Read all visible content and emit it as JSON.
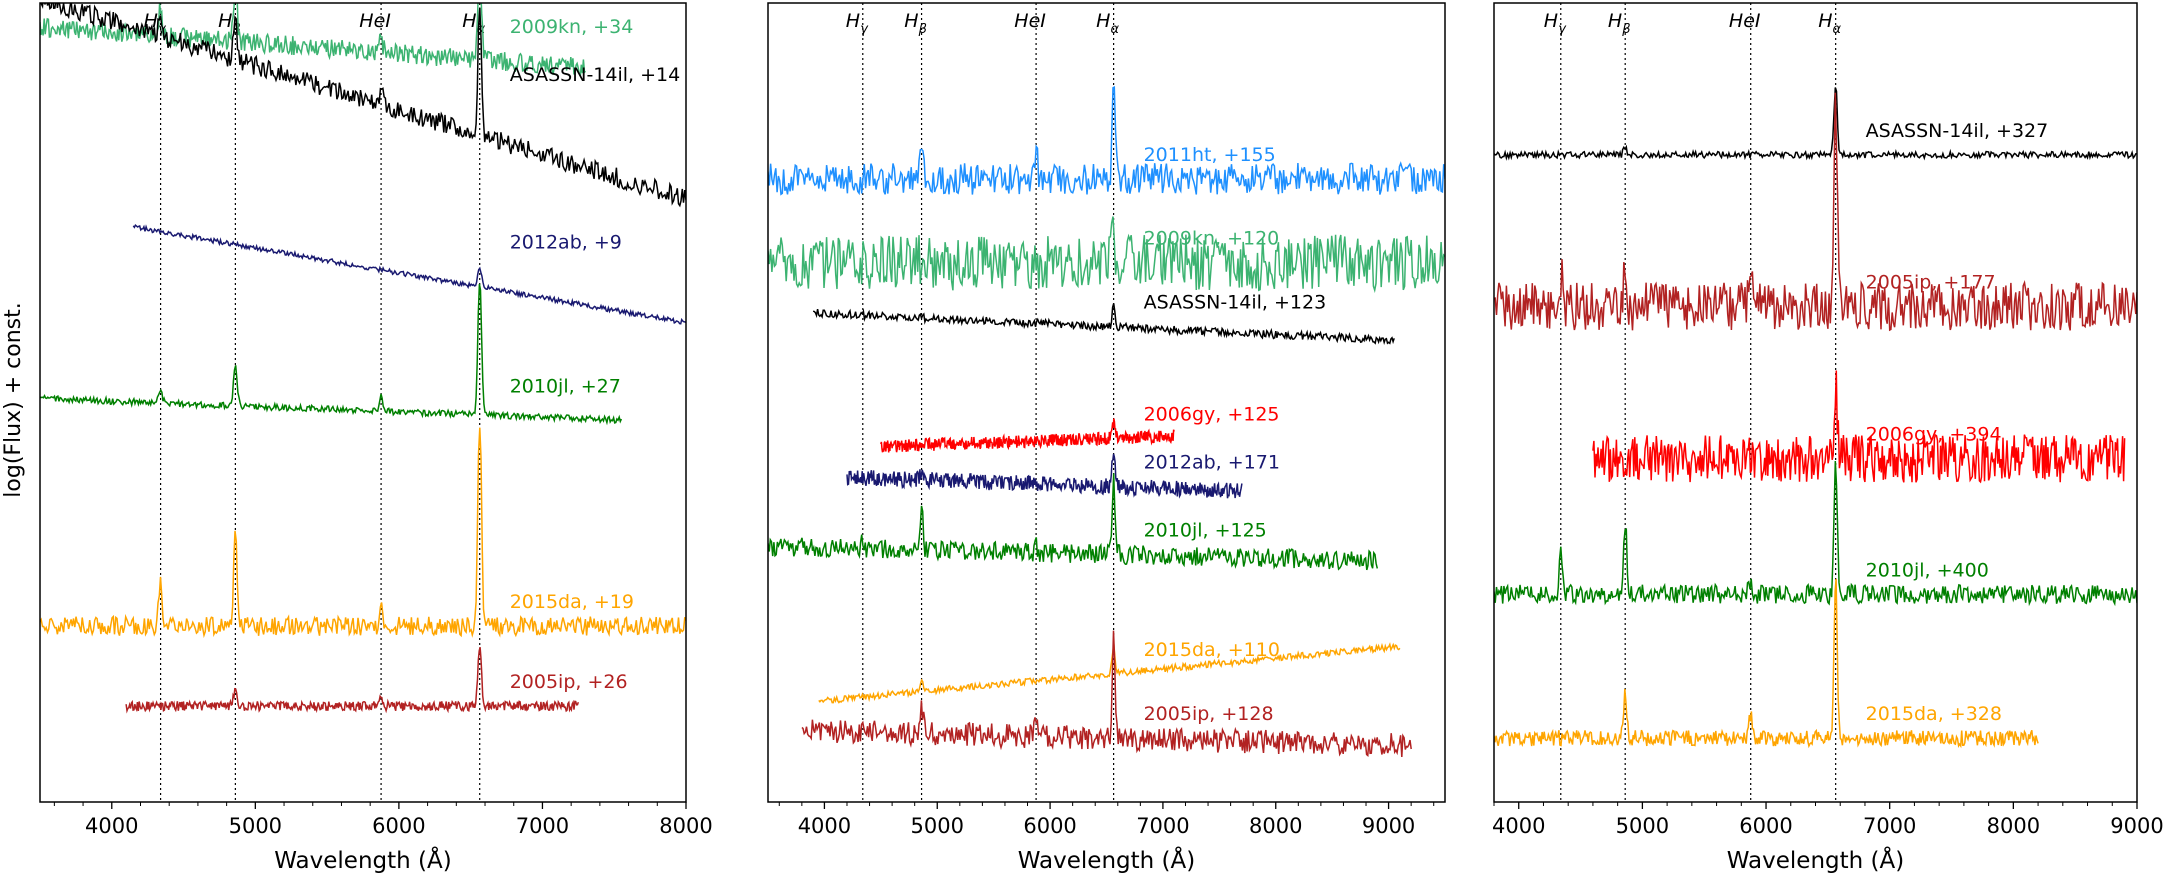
{
  "figure": {
    "ylabel": "log(Flux) + const."
  },
  "chart_data": [
    {
      "type": "line",
      "xlabel": "Wavelength (Å)",
      "ylabel": "log(Flux) + const.",
      "xlim": [
        3500,
        8000
      ],
      "xticks": [
        4000,
        5000,
        6000,
        7000,
        8000
      ],
      "lines": [
        {
          "label": "Hγ",
          "x": 4340
        },
        {
          "label": "Hβ",
          "x": 4861
        },
        {
          "label": "HeI",
          "x": 5876
        },
        {
          "label": "Hα",
          "x": 6563
        }
      ],
      "series": [
        {
          "name": "2009kn, +34",
          "color": "#3cb371",
          "range": [
            3500,
            7300
          ],
          "y0": 0.06,
          "slope": 0.06,
          "noise": 0.012,
          "lines": [
            [
              4340,
              0.035
            ],
            [
              4861,
              0.07
            ],
            [
              5876,
              0.015
            ],
            [
              6563,
              0.11
            ]
          ]
        },
        {
          "name": "ASASSN-14il, +14",
          "color": "#000000",
          "range": [
            3500,
            8000
          ],
          "y0": 0.12,
          "slope": 0.25,
          "noise": 0.012,
          "lines": [
            [
              4340,
              0.025
            ],
            [
              4861,
              0.05
            ],
            [
              5876,
              0.02
            ],
            [
              6563,
              0.16
            ]
          ]
        },
        {
          "name": "2012ab, +9",
          "color": "#191970",
          "range": [
            4150,
            8000
          ],
          "y0": 0.33,
          "slope": 0.14,
          "noise": 0.003,
          "lines": [
            [
              6563,
              0.025
            ]
          ]
        },
        {
          "name": "2010jl, +27",
          "color": "#008000",
          "range": [
            3500,
            7550
          ],
          "y0": 0.51,
          "slope": 0.03,
          "noise": 0.004,
          "lines": [
            [
              4340,
              0.015
            ],
            [
              4861,
              0.05
            ],
            [
              5876,
              0.018
            ],
            [
              6563,
              0.17
            ]
          ]
        },
        {
          "name": "2015da, +19",
          "color": "#ffa500",
          "range": [
            3500,
            8000
          ],
          "y0": 0.78,
          "slope": 0.0,
          "noise": 0.012,
          "lines": [
            [
              4340,
              0.05
            ],
            [
              4861,
              0.11
            ],
            [
              5876,
              0.03
            ],
            [
              6563,
              0.26
            ]
          ]
        },
        {
          "name": "2005ip, +26",
          "color": "#b22222",
          "range": [
            4100,
            7250
          ],
          "y0": 0.88,
          "slope": 0.0,
          "noise": 0.006,
          "lines": [
            [
              4861,
              0.02
            ],
            [
              5876,
              0.012
            ],
            [
              6563,
              0.07
            ]
          ]
        }
      ]
    },
    {
      "type": "line",
      "xlabel": "Wavelength (Å)",
      "xlim": [
        3500,
        9500
      ],
      "xticks": [
        4000,
        5000,
        6000,
        7000,
        8000,
        9000
      ],
      "lines": [
        {
          "label": "Hγ",
          "x": 4340
        },
        {
          "label": "Hβ",
          "x": 4861
        },
        {
          "label": "HeI",
          "x": 5876
        },
        {
          "label": "Hα",
          "x": 6563
        }
      ],
      "series": [
        {
          "name": "2011ht, +155",
          "color": "#1e90ff",
          "range": [
            3500,
            9500
          ],
          "y0": 0.22,
          "slope": 0.0,
          "noise": 0.02,
          "lines": [
            [
              4861,
              0.05
            ],
            [
              5876,
              0.03
            ],
            [
              6563,
              0.13
            ]
          ]
        },
        {
          "name": "2009kn, +120",
          "color": "#3cb371",
          "range": [
            3500,
            9500
          ],
          "y0": 0.325,
          "slope": 0.0,
          "noise": 0.035,
          "lines": [
            [
              6563,
              0.05
            ]
          ]
        },
        {
          "name": "ASASSN-14il, +123",
          "color": "#000000",
          "range": [
            3900,
            9050
          ],
          "y0": 0.405,
          "slope": 0.04,
          "noise": 0.005,
          "lines": [
            [
              6563,
              0.025
            ]
          ]
        },
        {
          "name": "2006gy, +125",
          "color": "#ff0000",
          "range": [
            4500,
            7100
          ],
          "y0": 0.545,
          "slope": -0.03,
          "noise": 0.008,
          "lines": [
            [
              6563,
              0.02
            ]
          ]
        },
        {
          "name": "2012ab, +171",
          "color": "#191970",
          "range": [
            4200,
            7700
          ],
          "y0": 0.605,
          "slope": 0.03,
          "noise": 0.01,
          "lines": [
            [
              4861,
              0.01
            ],
            [
              6563,
              0.05
            ]
          ]
        },
        {
          "name": "2010jl, +125",
          "color": "#008000",
          "range": [
            3500,
            8900
          ],
          "y0": 0.69,
          "slope": 0.02,
          "noise": 0.012,
          "lines": [
            [
              4340,
              0.015
            ],
            [
              4861,
              0.05
            ],
            [
              5876,
              0.01
            ],
            [
              6563,
              0.09
            ]
          ]
        },
        {
          "name": "2015da, +110",
          "color": "#ffa500",
          "range": [
            3950,
            9100
          ],
          "y0": 0.84,
          "slope": -0.08,
          "noise": 0.004,
          "lines": [
            [
              4861,
              0.015
            ],
            [
              6563,
              0.035
            ]
          ]
        },
        {
          "name": "2005ip, +128",
          "color": "#b22222",
          "range": [
            3800,
            9200
          ],
          "y0": 0.92,
          "slope": 0.02,
          "noise": 0.015,
          "lines": [
            [
              4861,
              0.04
            ],
            [
              5876,
              0.02
            ],
            [
              6563,
              0.12
            ]
          ]
        }
      ]
    },
    {
      "type": "line",
      "xlabel": "Wavelength (Å)",
      "xlim": [
        3800,
        9000
      ],
      "xticks": [
        4000,
        5000,
        6000,
        7000,
        8000,
        9000
      ],
      "lines": [
        {
          "label": "Hγ",
          "x": 4340
        },
        {
          "label": "Hβ",
          "x": 4861
        },
        {
          "label": "HeI",
          "x": 5876
        },
        {
          "label": "Hα",
          "x": 6563
        }
      ],
      "series": [
        {
          "name": "ASASSN-14il, +327",
          "color": "#000000",
          "range": [
            3800,
            9000
          ],
          "y0": 0.19,
          "slope": 0.0,
          "noise": 0.004,
          "lines": [
            [
              4861,
              0.01
            ],
            [
              6563,
              0.09
            ]
          ]
        },
        {
          "name": "2005ip, +177",
          "color": "#b22222",
          "range": [
            3800,
            9000
          ],
          "y0": 0.38,
          "slope": 0.0,
          "noise": 0.03,
          "lines": [
            [
              4340,
              0.04
            ],
            [
              4861,
              0.06
            ],
            [
              5876,
              0.03
            ],
            [
              6563,
              0.25
            ]
          ]
        },
        {
          "name": "2006gy, +394",
          "color": "#ff0000",
          "range": [
            4600,
            8900
          ],
          "y0": 0.57,
          "slope": 0.0,
          "noise": 0.03,
          "lines": [
            [
              6563,
              0.09
            ]
          ]
        },
        {
          "name": "2010jl, +400",
          "color": "#008000",
          "range": [
            3800,
            9000
          ],
          "y0": 0.74,
          "slope": 0.0,
          "noise": 0.012,
          "lines": [
            [
              4340,
              0.05
            ],
            [
              4861,
              0.09
            ],
            [
              5876,
              0.02
            ],
            [
              6563,
              0.17
            ]
          ]
        },
        {
          "name": "2015da, +328",
          "color": "#ffa500",
          "range": [
            3800,
            8200
          ],
          "y0": 0.92,
          "slope": 0.0,
          "noise": 0.01,
          "lines": [
            [
              4861,
              0.06
            ],
            [
              5876,
              0.03
            ],
            [
              6563,
              0.2
            ]
          ]
        }
      ]
    }
  ]
}
